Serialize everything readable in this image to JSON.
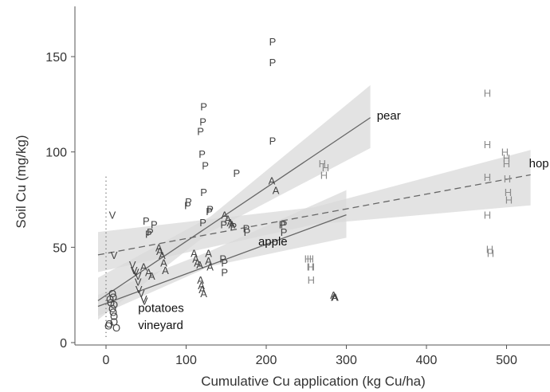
{
  "chart_data": {
    "type": "scatter",
    "xlabel": "Cumulative Cu application (kg Cu/ha)",
    "ylabel": "Soil Cu (mg/kg)",
    "xlim": [
      -40,
      540
    ],
    "ylim": [
      0,
      170
    ],
    "xticks": [
      0,
      100,
      200,
      300,
      400,
      500
    ],
    "yticks": [
      0,
      50,
      100,
      150
    ],
    "grid": false,
    "colors": {
      "points": "#444444",
      "hop_points": "#8a8a8a",
      "line": "#666666",
      "band": "#d9d9d9",
      "band_dark": "#bfbfbf"
    },
    "series": [
      {
        "name": "pear",
        "marker": "P",
        "points": [
          [
            208,
            158
          ],
          [
            208,
            147
          ],
          [
            122,
            124
          ],
          [
            121,
            116
          ],
          [
            118,
            111
          ],
          [
            120,
            99
          ],
          [
            124,
            93
          ],
          [
            122,
            79
          ],
          [
            103,
            74
          ],
          [
            102,
            72
          ],
          [
            130,
            70
          ],
          [
            129,
            69
          ],
          [
            163,
            89
          ],
          [
            208,
            106
          ],
          [
            121,
            63
          ],
          [
            50,
            64
          ],
          [
            53,
            57
          ],
          [
            55,
            58
          ],
          [
            60,
            62
          ],
          [
            147,
            62
          ],
          [
            159,
            61
          ],
          [
            175,
            60
          ],
          [
            176,
            58
          ],
          [
            146,
            44
          ],
          [
            148,
            42
          ],
          [
            148,
            37
          ],
          [
            220,
            62
          ],
          [
            222,
            58
          ],
          [
            222,
            62
          ]
        ],
        "fit": {
          "x": [
            -10,
            330
          ],
          "y": [
            22,
            118
          ]
        },
        "band_upper": [
          [
            -10,
            34
          ],
          [
            130,
            66
          ],
          [
            330,
            135
          ]
        ],
        "band_lower": [
          [
            -10,
            12
          ],
          [
            130,
            58
          ],
          [
            330,
            102
          ]
        ]
      },
      {
        "name": "apple",
        "marker": "A",
        "points": [
          [
            47,
            40
          ],
          [
            53,
            37
          ],
          [
            57,
            35
          ],
          [
            67,
            48
          ],
          [
            66,
            50
          ],
          [
            70,
            46
          ],
          [
            72,
            42
          ],
          [
            74,
            38
          ],
          [
            110,
            47
          ],
          [
            112,
            44
          ],
          [
            114,
            42
          ],
          [
            117,
            41
          ],
          [
            118,
            33
          ],
          [
            119,
            30
          ],
          [
            120,
            28
          ],
          [
            122,
            26
          ],
          [
            128,
            47
          ],
          [
            128,
            43
          ],
          [
            130,
            40
          ],
          [
            148,
            67
          ],
          [
            152,
            65
          ],
          [
            155,
            63
          ],
          [
            157,
            62
          ],
          [
            207,
            85
          ],
          [
            212,
            80
          ],
          [
            284,
            25
          ],
          [
            285,
            24
          ],
          [
            286,
            24
          ]
        ],
        "fit": {
          "x": [
            -10,
            300
          ],
          "y": [
            19,
            67
          ]
        },
        "band_upper": [
          [
            -10,
            25
          ],
          [
            130,
            48
          ],
          [
            300,
            80
          ]
        ],
        "band_lower": [
          [
            -10,
            14
          ],
          [
            130,
            40
          ],
          [
            300,
            55
          ]
        ]
      },
      {
        "name": "hop",
        "marker": "H",
        "points": [
          [
            252,
            44
          ],
          [
            255,
            44
          ],
          [
            256,
            40
          ],
          [
            255,
            40
          ],
          [
            256,
            33
          ],
          [
            270,
            94
          ],
          [
            274,
            92
          ],
          [
            272,
            88
          ],
          [
            476,
            131
          ],
          [
            476,
            104
          ],
          [
            476,
            87
          ],
          [
            476,
            67
          ],
          [
            479,
            49
          ],
          [
            480,
            47
          ],
          [
            498,
            100
          ],
          [
            500,
            97
          ],
          [
            500,
            94
          ],
          [
            501,
            86
          ],
          [
            502,
            79
          ],
          [
            503,
            75
          ]
        ],
        "fit": {
          "x": [
            -10,
            530
          ],
          "y": [
            46,
            88
          ]
        },
        "band_upper": [
          [
            -10,
            58
          ],
          [
            260,
            71
          ],
          [
            530,
            101
          ]
        ],
        "band_lower": [
          [
            -10,
            37
          ],
          [
            260,
            62
          ],
          [
            530,
            72
          ]
        ]
      },
      {
        "name": "potatoes",
        "marker": "O",
        "points": [
          [
            5,
            23
          ],
          [
            6,
            21
          ],
          [
            8,
            18
          ],
          [
            9,
            16
          ],
          [
            10,
            14
          ],
          [
            10,
            11
          ],
          [
            4,
            10
          ],
          [
            3,
            9
          ],
          [
            13,
            8
          ],
          [
            8,
            26
          ],
          [
            9,
            24
          ],
          [
            10,
            20
          ]
        ]
      },
      {
        "name": "vineyard",
        "marker": "V",
        "points": [
          [
            8,
            67
          ],
          [
            10,
            46
          ],
          [
            33,
            41
          ],
          [
            35,
            38
          ],
          [
            37,
            37
          ],
          [
            40,
            35
          ],
          [
            40,
            32
          ],
          [
            41,
            28
          ],
          [
            44,
            26
          ],
          [
            47,
            23
          ],
          [
            48,
            22
          ]
        ]
      }
    ]
  }
}
